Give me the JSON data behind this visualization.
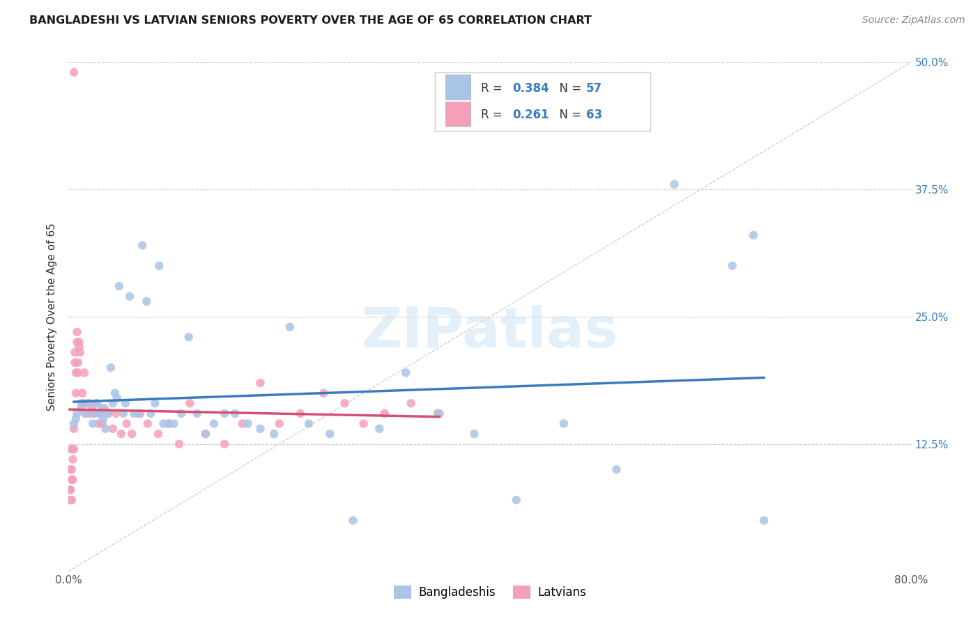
{
  "title": "BANGLADESHI VS LATVIAN SENIORS POVERTY OVER THE AGE OF 65 CORRELATION CHART",
  "source": "Source: ZipAtlas.com",
  "ylabel": "Seniors Poverty Over the Age of 65",
  "xlim": [
    0.0,
    0.8
  ],
  "ylim": [
    0.0,
    0.5
  ],
  "xticks": [
    0.0,
    0.2,
    0.4,
    0.6,
    0.8
  ],
  "yticks": [
    0.0,
    0.125,
    0.25,
    0.375,
    0.5
  ],
  "background_color": "#ffffff",
  "grid_color": "#cccccc",
  "watermark_text": "ZIPatlas",
  "legend_r_bangladeshi": "0.384",
  "legend_n_bangladeshi": "57",
  "legend_r_latvian": "0.261",
  "legend_n_latvian": "63",
  "bangladeshi_color": "#aac4e8",
  "latvian_color": "#f4a0b8",
  "bangladeshi_line_color": "#3a7bbf",
  "latvian_line_color": "#d45070",
  "marker_size": 80,
  "bangladeshi_x": [
    0.005,
    0.007,
    0.008,
    0.012,
    0.016,
    0.02,
    0.023,
    0.025,
    0.027,
    0.03,
    0.032,
    0.033,
    0.035,
    0.037,
    0.04,
    0.042,
    0.044,
    0.046,
    0.048,
    0.052,
    0.054,
    0.058,
    0.062,
    0.066,
    0.07,
    0.074,
    0.078,
    0.082,
    0.086,
    0.09,
    0.095,
    0.1,
    0.107,
    0.114,
    0.122,
    0.13,
    0.138,
    0.148,
    0.158,
    0.17,
    0.182,
    0.195,
    0.21,
    0.228,
    0.248,
    0.27,
    0.295,
    0.32,
    0.35,
    0.385,
    0.425,
    0.47,
    0.52,
    0.575,
    0.63,
    0.65,
    0.66
  ],
  "bangladeshi_y": [
    0.145,
    0.15,
    0.155,
    0.165,
    0.155,
    0.165,
    0.145,
    0.155,
    0.165,
    0.155,
    0.16,
    0.15,
    0.14,
    0.155,
    0.2,
    0.165,
    0.175,
    0.17,
    0.28,
    0.155,
    0.165,
    0.27,
    0.155,
    0.155,
    0.32,
    0.265,
    0.155,
    0.165,
    0.3,
    0.145,
    0.145,
    0.145,
    0.155,
    0.23,
    0.155,
    0.135,
    0.145,
    0.155,
    0.155,
    0.145,
    0.14,
    0.135,
    0.24,
    0.145,
    0.135,
    0.05,
    0.14,
    0.195,
    0.155,
    0.135,
    0.07,
    0.145,
    0.1,
    0.38,
    0.3,
    0.33,
    0.05
  ],
  "latvian_x": [
    0.001,
    0.001,
    0.001,
    0.002,
    0.002,
    0.003,
    0.003,
    0.003,
    0.004,
    0.004,
    0.004,
    0.005,
    0.005,
    0.006,
    0.006,
    0.007,
    0.007,
    0.008,
    0.008,
    0.009,
    0.009,
    0.01,
    0.01,
    0.011,
    0.012,
    0.013,
    0.014,
    0.015,
    0.016,
    0.018,
    0.02,
    0.022,
    0.024,
    0.026,
    0.028,
    0.03,
    0.032,
    0.034,
    0.038,
    0.042,
    0.045,
    0.05,
    0.055,
    0.06,
    0.068,
    0.075,
    0.085,
    0.095,
    0.105,
    0.115,
    0.13,
    0.148,
    0.165,
    0.182,
    0.2,
    0.22,
    0.242,
    0.262,
    0.28,
    0.3,
    0.325,
    0.352,
    0.005
  ],
  "latvian_y": [
    0.1,
    0.08,
    0.07,
    0.12,
    0.08,
    0.1,
    0.09,
    0.07,
    0.12,
    0.11,
    0.09,
    0.14,
    0.12,
    0.215,
    0.205,
    0.195,
    0.175,
    0.235,
    0.225,
    0.205,
    0.195,
    0.225,
    0.22,
    0.215,
    0.16,
    0.175,
    0.165,
    0.195,
    0.155,
    0.165,
    0.155,
    0.16,
    0.155,
    0.165,
    0.145,
    0.155,
    0.145,
    0.16,
    0.155,
    0.14,
    0.155,
    0.135,
    0.145,
    0.135,
    0.155,
    0.145,
    0.135,
    0.145,
    0.125,
    0.165,
    0.135,
    0.125,
    0.145,
    0.185,
    0.145,
    0.155,
    0.175,
    0.165,
    0.145,
    0.155,
    0.165,
    0.155,
    0.49
  ]
}
